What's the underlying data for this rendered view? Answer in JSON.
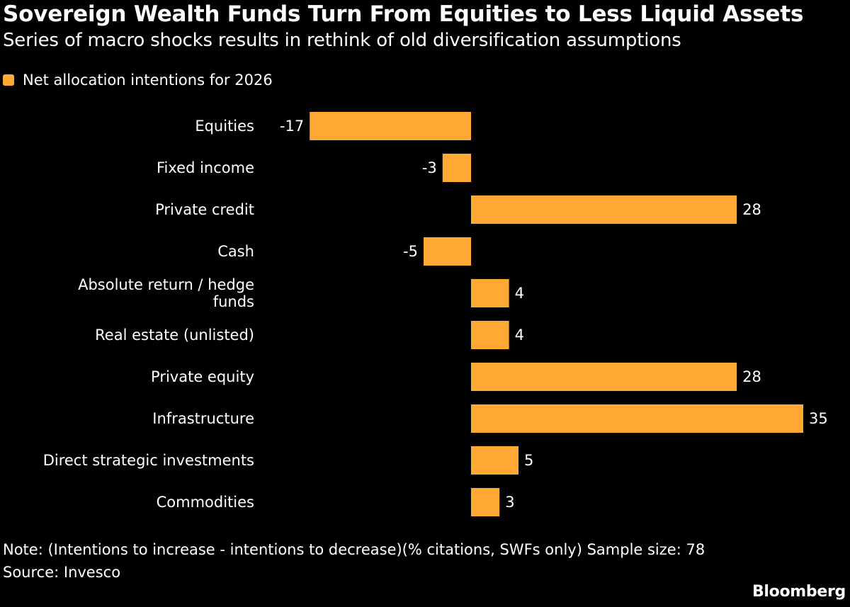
{
  "header": {
    "title": "Sovereign Wealth Funds Turn From Equities to Less Liquid Assets",
    "subtitle": "Series of macro shocks results in rethink of old diversification assumptions"
  },
  "legend": {
    "label": "Net allocation intentions for 2026",
    "color": "#FFA833"
  },
  "chart_data": {
    "type": "bar",
    "orientation": "horizontal",
    "categories": [
      [
        "Equities"
      ],
      [
        "Fixed income"
      ],
      [
        "Private credit"
      ],
      [
        "Cash"
      ],
      [
        "Absolute return / hedge",
        "funds"
      ],
      [
        "Real estate (unlisted)"
      ],
      [
        "Private equity"
      ],
      [
        "Infrastructure"
      ],
      [
        "Direct strategic investments"
      ],
      [
        "Commodities"
      ]
    ],
    "series": [
      {
        "name": "Net allocation intentions for 2026",
        "color": "#FFA833",
        "values": [
          -17,
          -3,
          28,
          -5,
          4,
          4,
          28,
          35,
          5,
          3
        ]
      }
    ],
    "xlim": [
      -17,
      35
    ],
    "grid": false,
    "legend_position": "top-left"
  },
  "footer": {
    "note": "Note: (Intentions to increase - intentions to decrease)(% citations, SWFs only) Sample size: 78",
    "source": "Source: Invesco",
    "brand": "Bloomberg"
  }
}
